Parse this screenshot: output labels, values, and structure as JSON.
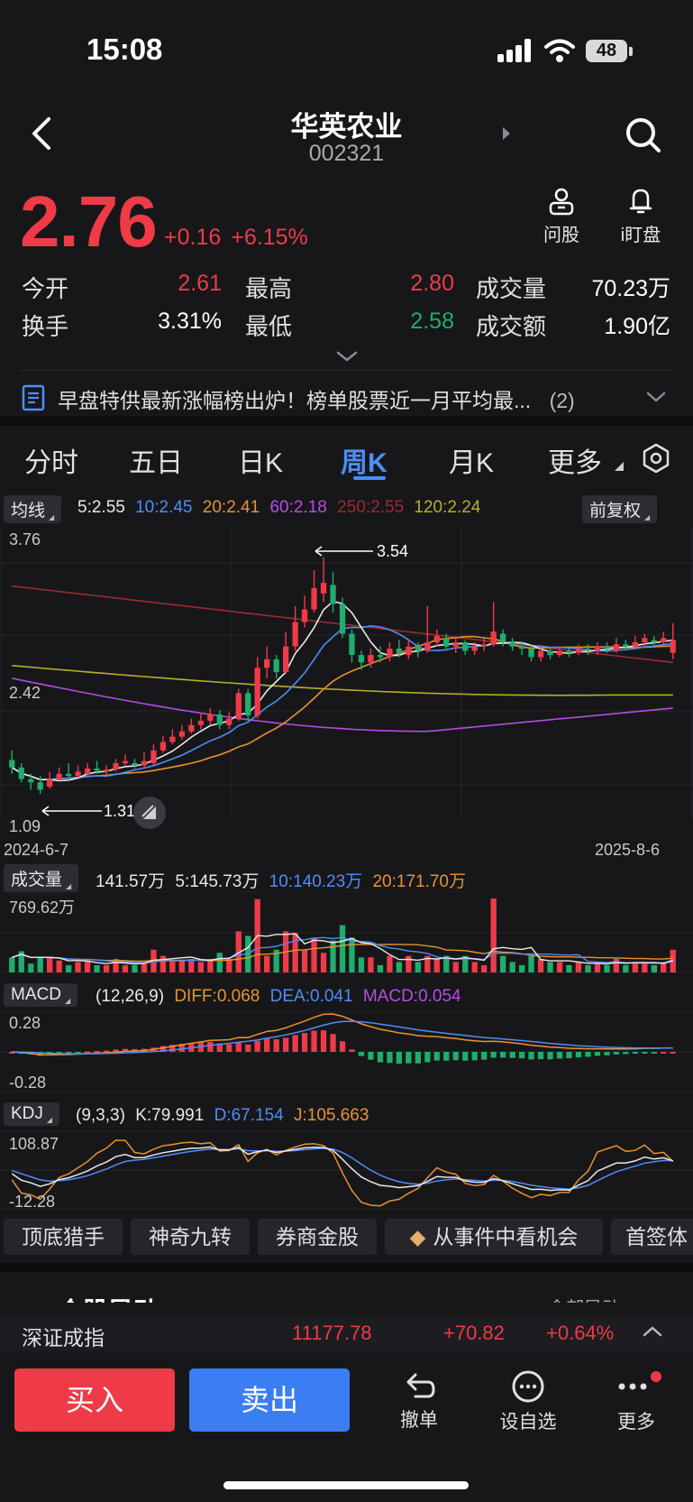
{
  "status": {
    "time": "15:08",
    "battery": "48"
  },
  "header": {
    "name": "华英农业",
    "code": "002321"
  },
  "quote": {
    "price": "2.76",
    "change": "+0.16",
    "change_pct": "+6.15%",
    "open_label": "今开",
    "open": "2.61",
    "high_label": "最高",
    "high": "2.80",
    "vol_label": "成交量",
    "vol": "70.23万",
    "turnover_label": "换手",
    "turnover": "3.31%",
    "low_label": "最低",
    "low": "2.58",
    "amount_label": "成交额",
    "amount": "1.90亿"
  },
  "actions": {
    "ask": "问股",
    "watch": "i盯盘"
  },
  "news": {
    "text": "早盘特供最新涨幅榜出炉！榜单股票近一月平均最...",
    "count": "(2)"
  },
  "tabs": [
    "分时",
    "五日",
    "日K",
    "周K",
    "月K",
    "更多"
  ],
  "active_tab": "周K",
  "ma_legend": {
    "button": "均线",
    "ma5": "5:2.55",
    "ma10": "10:2.45",
    "ma20": "20:2.41",
    "ma60": "60:2.18",
    "ma250": "250:2.55",
    "ma120": "120:2.24",
    "adjust": "前复权"
  },
  "kline_axis": {
    "top": "3.76",
    "mid": "2.42",
    "bottom": "1.09",
    "max_mark": "3.54",
    "min_mark": "1.31",
    "date_start": "2024-6-7",
    "date_end": "2025-8-6"
  },
  "vol_legend": {
    "button": "成交量",
    "v": "141.57万",
    "v5": "5:145.73万",
    "v10": "10:140.23万",
    "v20": "20:171.70万",
    "axis_top": "769.62万"
  },
  "macd_legend": {
    "button": "MACD",
    "params": "(12,26,9)",
    "diff": "DIFF:0.068",
    "dea": "DEA:0.041",
    "macd": "MACD:0.054",
    "axis_top": "0.28",
    "axis_bottom": "-0.28"
  },
  "kdj_legend": {
    "button": "KDJ",
    "params": "(9,3,3)",
    "k": "K:79.991",
    "d": "D:67.154",
    "j": "J:105.663",
    "axis_top": "108.87",
    "axis_bottom": "-12.28"
  },
  "features": [
    "顶底猎手",
    "神奇九转",
    "券商金股",
    "从事件中看机会",
    "首签体"
  ],
  "section_peek": {
    "left": "个股异动",
    "right": "全部异动"
  },
  "index_bar": {
    "name": "深证成指",
    "value": "11177.78",
    "change": "+70.82",
    "pct": "+0.64%"
  },
  "bottom": {
    "buy": "买入",
    "sell": "卖出",
    "cancel": "撤单",
    "watchlist": "设自选",
    "more": "更多"
  },
  "colors": {
    "up": "#ee3b47",
    "down": "#1fad6b",
    "blue": "#4f8df7",
    "orange": "#e7932f",
    "purple": "#b44ee0",
    "darkred": "#9b2a2e",
    "olive": "#b5b02a"
  },
  "chart_data": {
    "type": "candlestick",
    "title": "周K",
    "ylim": [
      1.09,
      3.76
    ],
    "x_range": [
      "2024-6-7",
      "2025-8-6"
    ],
    "candles": [
      [
        1.63,
        1.56,
        1.72,
        1.5
      ],
      [
        1.56,
        1.45,
        1.6,
        1.42
      ],
      [
        1.45,
        1.42,
        1.5,
        1.35
      ],
      [
        1.42,
        1.35,
        1.48,
        1.31
      ],
      [
        1.38,
        1.45,
        1.52,
        1.36
      ],
      [
        1.45,
        1.5,
        1.56,
        1.44
      ],
      [
        1.5,
        1.48,
        1.6,
        1.44
      ],
      [
        1.48,
        1.52,
        1.58,
        1.46
      ],
      [
        1.5,
        1.55,
        1.6,
        1.48
      ],
      [
        1.55,
        1.53,
        1.62,
        1.5
      ],
      [
        1.52,
        1.54,
        1.58,
        1.48
      ],
      [
        1.54,
        1.6,
        1.64,
        1.52
      ],
      [
        1.6,
        1.62,
        1.68,
        1.58
      ],
      [
        1.6,
        1.58,
        1.64,
        1.55
      ],
      [
        1.58,
        1.62,
        1.7,
        1.56
      ],
      [
        1.6,
        1.72,
        1.78,
        1.58
      ],
      [
        1.72,
        1.8,
        1.86,
        1.7
      ],
      [
        1.8,
        1.85,
        1.92,
        1.78
      ],
      [
        1.85,
        1.9,
        1.96,
        1.82
      ],
      [
        1.9,
        1.96,
        2.02,
        1.88
      ],
      [
        1.96,
        2.0,
        2.08,
        1.92
      ],
      [
        2.0,
        2.06,
        2.12,
        1.96
      ],
      [
        2.06,
        1.96,
        2.1,
        1.92
      ],
      [
        1.96,
        2.02,
        2.08,
        1.92
      ],
      [
        2.02,
        2.26,
        2.3,
        2.0
      ],
      [
        2.26,
        2.05,
        2.3,
        2.0
      ],
      [
        2.05,
        2.5,
        2.6,
        2.02
      ],
      [
        2.5,
        2.58,
        2.7,
        2.4
      ],
      [
        2.58,
        2.46,
        2.62,
        2.4
      ],
      [
        2.46,
        2.7,
        2.84,
        2.44
      ],
      [
        2.7,
        2.93,
        3.08,
        2.66
      ],
      [
        2.93,
        3.05,
        3.18,
        2.88
      ],
      [
        3.05,
        3.25,
        3.42,
        3.02
      ],
      [
        3.2,
        3.3,
        3.54,
        3.12
      ],
      [
        3.28,
        3.1,
        3.4,
        3.02
      ],
      [
        3.1,
        2.82,
        3.16,
        2.78
      ],
      [
        2.82,
        2.62,
        2.86,
        2.55
      ],
      [
        2.62,
        2.55,
        2.66,
        2.48
      ],
      [
        2.55,
        2.62,
        2.68,
        2.5
      ],
      [
        2.62,
        2.6,
        2.7,
        2.55
      ],
      [
        2.6,
        2.68,
        2.74,
        2.56
      ],
      [
        2.68,
        2.64,
        2.76,
        2.6
      ],
      [
        2.62,
        2.7,
        2.76,
        2.58
      ],
      [
        2.7,
        2.66,
        2.74,
        2.6
      ],
      [
        2.66,
        2.74,
        3.08,
        2.64
      ],
      [
        2.74,
        2.8,
        2.86,
        2.7
      ],
      [
        2.78,
        2.7,
        2.82,
        2.66
      ],
      [
        2.7,
        2.74,
        2.8,
        2.64
      ],
      [
        2.74,
        2.66,
        2.76,
        2.62
      ],
      [
        2.66,
        2.7,
        2.74,
        2.62
      ],
      [
        2.7,
        2.72,
        2.78,
        2.66
      ],
      [
        2.72,
        2.84,
        3.12,
        2.7
      ],
      [
        2.82,
        2.74,
        2.86,
        2.7
      ],
      [
        2.74,
        2.7,
        2.78,
        2.66
      ],
      [
        2.7,
        2.68,
        2.74,
        2.62
      ],
      [
        2.68,
        2.6,
        2.72,
        2.56
      ],
      [
        2.6,
        2.66,
        2.7,
        2.56
      ],
      [
        2.66,
        2.62,
        2.68,
        2.58
      ],
      [
        2.62,
        2.66,
        2.7,
        2.6
      ],
      [
        2.66,
        2.64,
        2.68,
        2.6
      ],
      [
        2.64,
        2.68,
        2.72,
        2.62
      ],
      [
        2.68,
        2.66,
        2.72,
        2.62
      ],
      [
        2.66,
        2.7,
        2.74,
        2.62
      ],
      [
        2.7,
        2.68,
        2.74,
        2.64
      ],
      [
        2.66,
        2.72,
        2.78,
        2.64
      ],
      [
        2.72,
        2.7,
        2.76,
        2.66
      ],
      [
        2.7,
        2.74,
        2.8,
        2.68
      ],
      [
        2.74,
        2.78,
        2.82,
        2.7
      ],
      [
        2.76,
        2.74,
        2.8,
        2.7
      ],
      [
        2.74,
        2.78,
        2.84,
        2.72
      ],
      [
        2.64,
        2.76,
        2.92,
        2.58
      ]
    ]
  }
}
